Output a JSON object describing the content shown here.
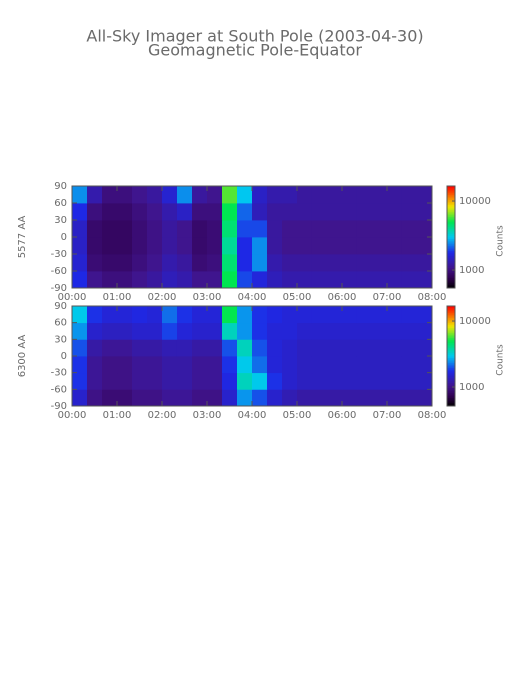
{
  "title": "All-Sky Imager at South Pole (2003-04-30)",
  "subtitle": "Geomagnetic Pole-Equator",
  "chart_data": [
    {
      "type": "heatmap",
      "ylabel": "5577 AA",
      "colorbar_label": "Counts",
      "xlim": [
        0,
        8
      ],
      "xticks": [
        {
          "value": 0,
          "label": "00:00"
        },
        {
          "value": 1,
          "label": "01:00"
        },
        {
          "value": 2,
          "label": "02:00"
        },
        {
          "value": 3,
          "label": "03:00"
        },
        {
          "value": 4,
          "label": "04:00"
        },
        {
          "value": 5,
          "label": "05:00"
        },
        {
          "value": 6,
          "label": "06:00"
        },
        {
          "value": 7,
          "label": "07:00"
        },
        {
          "value": 8,
          "label": "08:00"
        }
      ],
      "ylim": [
        -90,
        90
      ],
      "yticks": [
        -90,
        -60,
        -30,
        0,
        30,
        60,
        90
      ],
      "xbins": [
        0,
        0.3333,
        0.6667,
        1,
        1.3333,
        1.6667,
        2,
        2.3333,
        2.6667,
        3,
        3.3333,
        3.6667,
        4,
        4.3333,
        4.6667,
        5,
        5.3333,
        5.6667,
        6,
        6.3333,
        6.6667,
        7,
        7.3333,
        7.6667,
        8
      ],
      "ybins": [
        -90,
        -60,
        -30,
        0,
        30,
        60,
        90
      ],
      "zlim": [
        550,
        16500
      ],
      "zscale": "log",
      "zticks": [
        1000,
        10000
      ],
      "z": [
        [
          1800,
          1100,
          1000,
          1000,
          1100,
          1200,
          1400,
          1300,
          1100,
          1100,
          5000,
          2000,
          1700,
          1400,
          1300,
          1300,
          1300,
          1300,
          1300,
          1300,
          1300,
          1300,
          1300,
          1300
        ],
        [
          1600,
          950,
          900,
          900,
          1000,
          1100,
          1300,
          1200,
          950,
          1000,
          4500,
          1800,
          2500,
          1300,
          1200,
          1200,
          1200,
          1200,
          1200,
          1200,
          1200,
          1200,
          1200,
          1200
        ],
        [
          1500,
          900,
          850,
          850,
          950,
          1050,
          1200,
          1100,
          900,
          950,
          4000,
          1800,
          2500,
          1200,
          1100,
          1100,
          1100,
          1100,
          1100,
          1100,
          1100,
          1100,
          1100,
          1100
        ],
        [
          1500,
          900,
          850,
          850,
          950,
          1050,
          1200,
          1100,
          900,
          950,
          4500,
          2000,
          2000,
          1200,
          1100,
          1100,
          1100,
          1100,
          1100,
          1100,
          1100,
          1100,
          1100,
          1100
        ],
        [
          1800,
          1000,
          900,
          900,
          1000,
          1100,
          1300,
          1500,
          1000,
          1000,
          5000,
          2200,
          1400,
          1200,
          1200,
          1200,
          1200,
          1200,
          1200,
          1200,
          1200,
          1200,
          1200,
          1200
        ],
        [
          2500,
          1300,
          1000,
          1000,
          1100,
          1200,
          1600,
          2500,
          1200,
          1100,
          6000,
          3000,
          1500,
          1300,
          1300,
          1200,
          1200,
          1200,
          1200,
          1200,
          1200,
          1200,
          1200,
          1200
        ]
      ]
    },
    {
      "type": "heatmap",
      "ylabel": "6300 AA",
      "colorbar_label": "Counts",
      "xlim": [
        0,
        8
      ],
      "xticks": [
        {
          "value": 0,
          "label": "00:00"
        },
        {
          "value": 1,
          "label": "01:00"
        },
        {
          "value": 2,
          "label": "02:00"
        },
        {
          "value": 3,
          "label": "03:00"
        },
        {
          "value": 4,
          "label": "04:00"
        },
        {
          "value": 5,
          "label": "05:00"
        },
        {
          "value": 6,
          "label": "06:00"
        },
        {
          "value": 7,
          "label": "07:00"
        },
        {
          "value": 8,
          "label": "08:00"
        }
      ],
      "ylim": [
        -90,
        90
      ],
      "yticks": [
        -90,
        -60,
        -30,
        0,
        30,
        60,
        90
      ],
      "xbins": [
        0,
        0.3333,
        0.6667,
        1,
        1.3333,
        1.6667,
        2,
        2.3333,
        2.6667,
        3,
        3.3333,
        3.6667,
        4,
        4.3333,
        4.6667,
        5,
        5.3333,
        5.6667,
        6,
        6.3333,
        6.6667,
        7,
        7.3333,
        7.6667,
        8
      ],
      "ybins": [
        -90,
        -60,
        -30,
        0,
        30,
        60,
        90
      ],
      "zlim": [
        515,
        16900
      ],
      "zscale": "log",
      "zticks": [
        1000,
        10000
      ],
      "z": [
        [
          1500,
          1000,
          900,
          900,
          1000,
          1000,
          1100,
          1100,
          1000,
          1000,
          1500,
          2500,
          2000,
          1500,
          1300,
          1200,
          1200,
          1200,
          1200,
          1200,
          1200,
          1200,
          1200,
          1200
        ],
        [
          1800,
          1100,
          1000,
          1000,
          1100,
          1100,
          1200,
          1200,
          1100,
          1100,
          1700,
          3500,
          3000,
          1800,
          1500,
          1400,
          1400,
          1400,
          1400,
          1400,
          1400,
          1400,
          1400,
          1400
        ],
        [
          1800,
          1100,
          1000,
          1000,
          1100,
          1100,
          1200,
          1200,
          1100,
          1100,
          1800,
          3000,
          2200,
          1600,
          1500,
          1400,
          1400,
          1400,
          1400,
          1400,
          1400,
          1400,
          1400,
          1400
        ],
        [
          2000,
          1200,
          1100,
          1100,
          1200,
          1200,
          1300,
          1300,
          1200,
          1200,
          2000,
          3500,
          2000,
          1600,
          1500,
          1400,
          1400,
          1400,
          1400,
          1400,
          1400,
          1400,
          1400,
          1400
        ],
        [
          2500,
          1500,
          1400,
          1400,
          1500,
          1500,
          1900,
          1600,
          1500,
          1500,
          3500,
          2500,
          1800,
          1600,
          1600,
          1500,
          1500,
          1500,
          1500,
          1500,
          1500,
          1500,
          1500,
          1500
        ],
        [
          3000,
          1800,
          1600,
          1600,
          1700,
          1600,
          2200,
          1800,
          1600,
          1600,
          5000,
          2500,
          1800,
          1700,
          1600,
          1600,
          1600,
          1600,
          1600,
          1600,
          1600,
          1600,
          1600,
          1600
        ]
      ]
    }
  ]
}
